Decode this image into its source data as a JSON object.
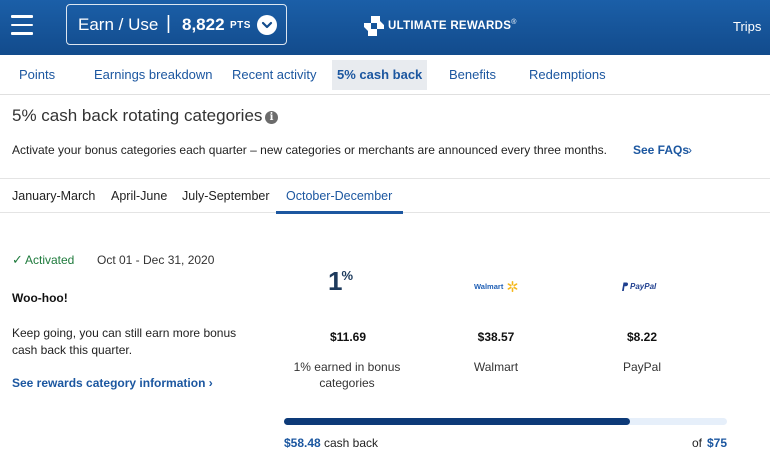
{
  "header": {
    "earn_label": "Earn / Use",
    "separator": "|",
    "points": "8,822",
    "points_unit": "PTS",
    "brand": "ULTIMATE REWARDS",
    "brand_mark": "®",
    "trips": "Trips",
    "colors": {
      "bar": "#1b5fa8",
      "text": "#ffffff"
    }
  },
  "nav": {
    "tabs": [
      {
        "label": "Points",
        "active": false
      },
      {
        "label": "Earnings breakdown",
        "active": false
      },
      {
        "label": "Recent activity",
        "active": false
      },
      {
        "label": "5% cash back",
        "active": true
      },
      {
        "label": "Benefits",
        "active": false
      },
      {
        "label": "Redemptions",
        "active": false
      }
    ]
  },
  "page": {
    "title": "5% cash back rotating categories",
    "info_icon": "i",
    "intro": "Activate your bonus categories each quarter – new categories or merchants are announced every three months.",
    "faq_link": "See FAQs",
    "faq_chevron": "›"
  },
  "quarters": {
    "tabs": [
      {
        "label": "January-March",
        "active": false
      },
      {
        "label": "April-June",
        "active": false
      },
      {
        "label": "July-September",
        "active": false
      },
      {
        "label": "October-December",
        "active": true
      }
    ]
  },
  "status": {
    "check": "✓",
    "activated": "Activated",
    "dates": "Oct 01 - Dec 31, 2020",
    "headline": "Woo-hoo!",
    "message": "Keep going, you can still earn more bonus cash back this quarter.",
    "link": "See rewards category information",
    "link_chevron": "›"
  },
  "categories": [
    {
      "icon": "one-percent-icon",
      "icon_text": "1",
      "icon_sup": "%",
      "amount": "$11.69",
      "label": "1% earned in bonus categories"
    },
    {
      "icon": "walmart-logo",
      "icon_text": "Walmart",
      "amount": "$38.57",
      "label": "Walmart"
    },
    {
      "icon": "paypal-logo",
      "icon_text": "PayPal",
      "amount": "$8.22",
      "label": "PayPal"
    }
  ],
  "progress": {
    "earned": "$58.48",
    "earned_label": "cash back",
    "of_label": "of",
    "cap": "$75",
    "fraction": 0.78,
    "colors": {
      "fill": "#0d3a78",
      "track": "#e6effa"
    }
  }
}
